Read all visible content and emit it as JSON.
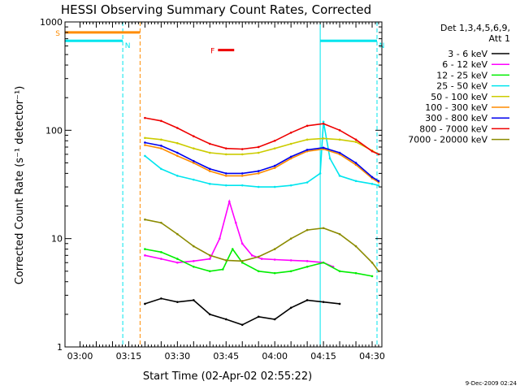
{
  "chart_data": {
    "type": "line",
    "title": "HESSI Observing Summary Count Rates, Corrected",
    "xlabel": "Start Time (02-Apr-02 02:55:22)",
    "ylabel": "Corrected Count Rate (s⁻¹ detector⁻¹)",
    "y_scale": "log",
    "ylim": [
      1,
      1000
    ],
    "x_range": [
      "02:55:22",
      "04:33:00"
    ],
    "x_ticks": [
      "03:00",
      "03:15",
      "03:30",
      "03:45",
      "04:00",
      "04:15",
      "04:30"
    ],
    "y_ticks": [
      "1",
      "10",
      "100",
      "1000"
    ],
    "footer_timestamp": "9-Dec-2009 02:24",
    "legend": {
      "header": [
        "Det 1,3,4,5,6,9,",
        "Att 1"
      ],
      "placement": "right"
    },
    "markers": [
      {
        "label": "S",
        "color": "#ff8c00",
        "x_start": "02:55:22",
        "x_end": "03:18:30",
        "y": 800
      },
      {
        "label": "N",
        "color": "#00e5ee",
        "x_start": "02:55:22",
        "x_end": "03:13:10",
        "y": 670
      },
      {
        "label": "N",
        "color": "#00e5ee",
        "x_start": "04:14:00",
        "x_end": "04:31:30",
        "y": 670
      },
      {
        "label": "F",
        "color": "#ee0000",
        "x_start": "03:42:30",
        "x_end": "03:47:30",
        "y": 550
      }
    ],
    "vlines": [
      {
        "x": "03:13:10",
        "color": "#00e5ee",
        "style": "dashed"
      },
      {
        "x": "03:18:30",
        "color": "#ff8c00",
        "style": "dashed"
      },
      {
        "x": "04:14:00",
        "color": "#00e5ee",
        "style": "solid"
      },
      {
        "x": "04:31:30",
        "color": "#00e5ee",
        "style": "dashed"
      }
    ],
    "series": [
      {
        "name": "3 - 6 keV",
        "color": "#000000",
        "x": [
          "03:20",
          "03:25",
          "03:30",
          "03:35",
          "03:40",
          "03:45",
          "03:50",
          "03:55",
          "04:00",
          "04:05",
          "04:10",
          "04:15",
          "04:20"
        ],
        "y": [
          2.5,
          2.8,
          2.6,
          2.7,
          2.0,
          1.8,
          1.6,
          1.9,
          1.8,
          2.3,
          2.7,
          2.6,
          2.5
        ]
      },
      {
        "name": "6 - 12 keV",
        "color": "#ff00ff",
        "x": [
          "03:20",
          "03:25",
          "03:30",
          "03:35",
          "03:40",
          "03:43",
          "03:46",
          "03:48",
          "03:50",
          "03:53",
          "03:56",
          "04:00",
          "04:05",
          "04:10",
          "04:15",
          "04:18"
        ],
        "y": [
          7.0,
          6.5,
          6.0,
          6.2,
          6.5,
          10.0,
          22.0,
          14.0,
          9.0,
          7.0,
          6.5,
          6.4,
          6.3,
          6.2,
          6.0,
          5.5
        ]
      },
      {
        "name": "12 - 25 keV",
        "color": "#00ee00",
        "x": [
          "03:20",
          "03:25",
          "03:30",
          "03:35",
          "03:40",
          "03:44",
          "03:47",
          "03:50",
          "03:55",
          "04:00",
          "04:05",
          "04:10",
          "04:15",
          "04:20",
          "04:25",
          "04:30"
        ],
        "y": [
          8.0,
          7.5,
          6.5,
          5.5,
          5.0,
          5.2,
          8.0,
          6.0,
          5.0,
          4.8,
          5.0,
          5.5,
          6.0,
          5.0,
          4.8,
          4.5
        ]
      },
      {
        "name": "25 - 50 keV",
        "color": "#00e5ee",
        "x": [
          "03:20",
          "03:25",
          "03:30",
          "03:35",
          "03:40",
          "03:45",
          "03:50",
          "03:55",
          "04:00",
          "04:05",
          "04:10",
          "04:14",
          "04:15",
          "04:17",
          "04:20",
          "04:25",
          "04:30",
          "04:32"
        ],
        "y": [
          58,
          44,
          38,
          35,
          32,
          31,
          31,
          30,
          30,
          31,
          33,
          40,
          120,
          55,
          38,
          34,
          32,
          31
        ]
      },
      {
        "name": "50 - 100 keV",
        "color": "#cccc00",
        "x": [
          "03:20",
          "03:25",
          "03:30",
          "03:35",
          "03:40",
          "03:45",
          "03:50",
          "03:55",
          "04:00",
          "04:05",
          "04:10",
          "04:15",
          "04:20",
          "04:25",
          "04:30",
          "04:32"
        ],
        "y": [
          85,
          82,
          76,
          68,
          62,
          60,
          60,
          62,
          68,
          75,
          82,
          84,
          82,
          78,
          65,
          60
        ]
      },
      {
        "name": "100 - 300 keV",
        "color": "#ff8c00",
        "x": [
          "03:20",
          "03:25",
          "03:30",
          "03:35",
          "03:40",
          "03:45",
          "03:50",
          "03:55",
          "04:00",
          "04:05",
          "04:10",
          "04:15",
          "04:20",
          "04:25",
          "04:30",
          "04:32"
        ],
        "y": [
          73,
          68,
          58,
          50,
          42,
          38,
          38,
          40,
          45,
          55,
          64,
          67,
          60,
          48,
          36,
          33
        ]
      },
      {
        "name": "300 - 800 keV",
        "color": "#0000ee",
        "x": [
          "03:20",
          "03:25",
          "03:30",
          "03:35",
          "03:40",
          "03:45",
          "03:50",
          "03:55",
          "04:00",
          "04:05",
          "04:10",
          "04:15",
          "04:20",
          "04:25",
          "04:30",
          "04:32"
        ],
        "y": [
          77,
          72,
          62,
          52,
          44,
          40,
          40,
          42,
          47,
          57,
          66,
          69,
          62,
          50,
          37,
          34
        ]
      },
      {
        "name": "800 - 7000 keV",
        "color": "#ee0000",
        "x": [
          "03:20",
          "03:25",
          "03:30",
          "03:35",
          "03:40",
          "03:45",
          "03:50",
          "03:55",
          "04:00",
          "04:05",
          "04:10",
          "04:15",
          "04:20",
          "04:25",
          "04:30",
          "04:32"
        ],
        "y": [
          130,
          122,
          105,
          88,
          75,
          68,
          67,
          70,
          80,
          95,
          110,
          115,
          100,
          82,
          64,
          60
        ]
      },
      {
        "name": "7000 - 20000 keV",
        "color": "#8b8b00",
        "x": [
          "03:20",
          "03:25",
          "03:30",
          "03:35",
          "03:40",
          "03:45",
          "03:50",
          "03:55",
          "04:00",
          "04:05",
          "04:10",
          "04:15",
          "04:20",
          "04:25",
          "04:30",
          "04:32"
        ],
        "y": [
          15,
          14,
          11,
          8.5,
          7.0,
          6.3,
          6.2,
          6.8,
          8.0,
          10.0,
          12.0,
          12.5,
          11.0,
          8.5,
          6.0,
          5.0
        ]
      }
    ]
  }
}
